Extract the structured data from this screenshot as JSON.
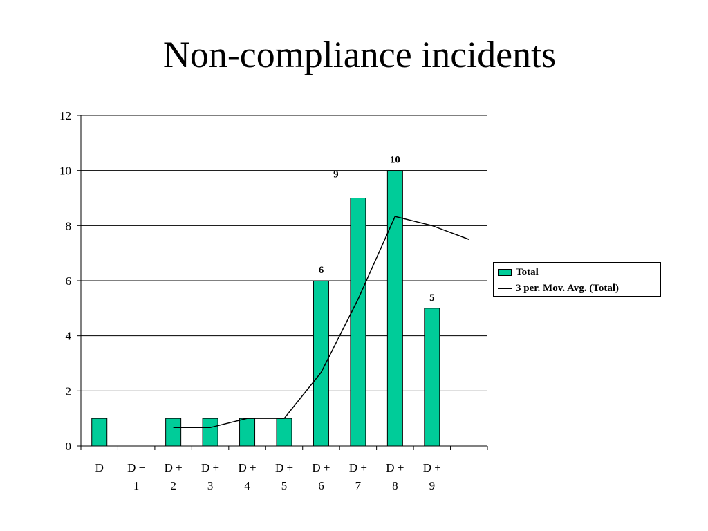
{
  "title": "Non-compliance incidents",
  "colors": {
    "bar": "#00cc99",
    "bar_stroke": "#000000",
    "line": "#000000",
    "grid": "#000000"
  },
  "chart_data": {
    "type": "bar",
    "categories": [
      [
        "D"
      ],
      [
        "D +",
        "1"
      ],
      [
        "D +",
        "2"
      ],
      [
        "D +",
        "3"
      ],
      [
        "D +",
        "4"
      ],
      [
        "D +",
        "5"
      ],
      [
        "D +",
        "6"
      ],
      [
        "D +",
        "7"
      ],
      [
        "D +",
        "8"
      ],
      [
        "D +",
        "9"
      ],
      []
    ],
    "series": [
      {
        "name": "Total",
        "values": [
          1,
          null,
          1,
          1,
          1,
          1,
          6,
          9,
          10,
          5,
          null
        ]
      },
      {
        "name": "3 per. Mov. Avg. (Total)",
        "type": "line",
        "values": [
          null,
          null,
          0.67,
          0.67,
          1,
          1,
          2.67,
          5.33,
          8.33,
          8,
          7.5
        ]
      }
    ],
    "data_labels": [
      {
        "index": 6,
        "text": "6"
      },
      {
        "index": 7,
        "text": "9"
      },
      {
        "index": 8,
        "text": "10"
      },
      {
        "index": 9,
        "text": "5"
      }
    ],
    "yticks": [
      "0",
      "2",
      "4",
      "6",
      "8",
      "10",
      "12"
    ],
    "ylim": [
      0,
      12
    ],
    "grid": true,
    "legend": {
      "position": "right",
      "entries": [
        "Total",
        "3 per. Mov. Avg. (Total)"
      ]
    }
  }
}
